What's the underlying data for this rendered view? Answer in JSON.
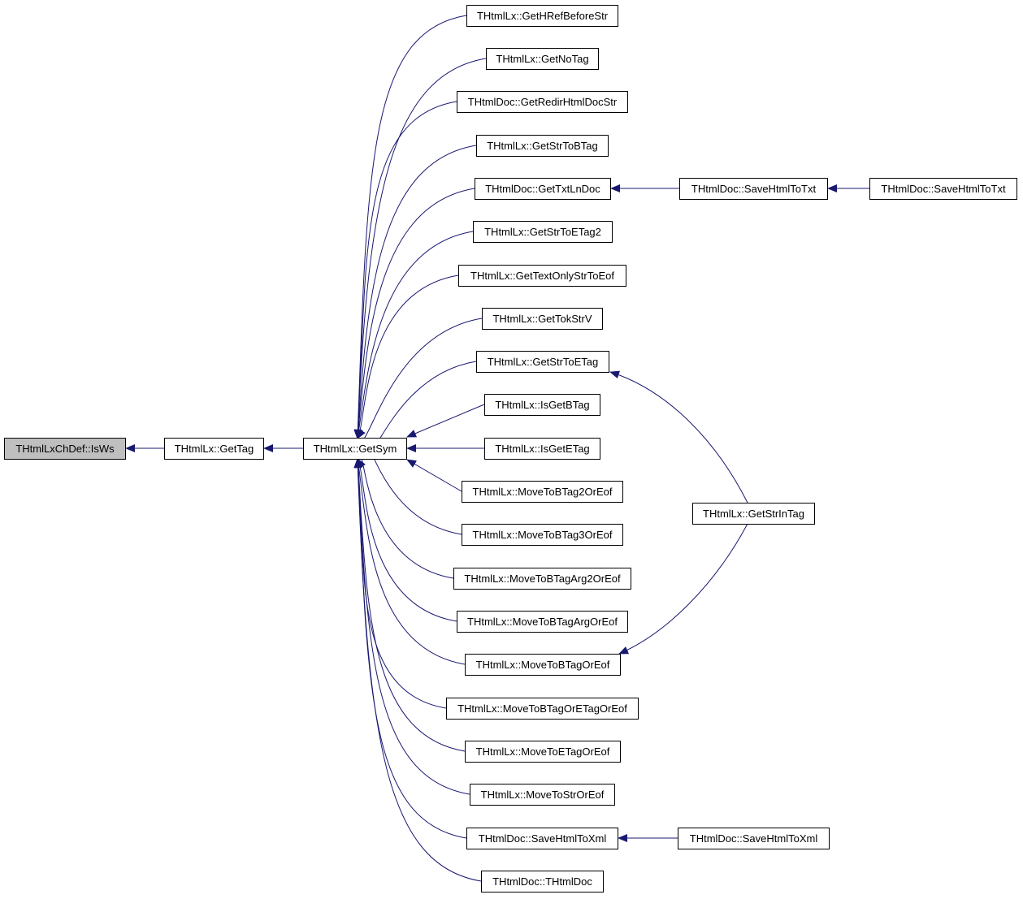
{
  "graph": {
    "edge_color": "#191970",
    "root_fill": "#bfbfbf",
    "nodes": [
      {
        "id": "isws",
        "label": "THtmlLxChDef::IsWs",
        "root": true
      },
      {
        "id": "gettag",
        "label": "THtmlLx::GetTag"
      },
      {
        "id": "getsym",
        "label": "THtmlLx::GetSym"
      },
      {
        "id": "c0",
        "label": "THtmlLx::GetHRefBeforeStr"
      },
      {
        "id": "c1",
        "label": "THtmlLx::GetNoTag"
      },
      {
        "id": "c2",
        "label": "THtmlDoc::GetRedirHtmlDocStr"
      },
      {
        "id": "c3",
        "label": "THtmlLx::GetStrToBTag"
      },
      {
        "id": "c4",
        "label": "THtmlDoc::GetTxtLnDoc"
      },
      {
        "id": "c5",
        "label": "THtmlLx::GetStrToETag2"
      },
      {
        "id": "c6",
        "label": "THtmlLx::GetTextOnlyStrToEof"
      },
      {
        "id": "c7",
        "label": "THtmlLx::GetTokStrV"
      },
      {
        "id": "c8",
        "label": "THtmlLx::GetStrToETag"
      },
      {
        "id": "c9",
        "label": "THtmlLx::IsGetBTag"
      },
      {
        "id": "c10",
        "label": "THtmlLx::IsGetETag"
      },
      {
        "id": "c11",
        "label": "THtmlLx::MoveToBTag2OrEof"
      },
      {
        "id": "c12",
        "label": "THtmlLx::MoveToBTag3OrEof"
      },
      {
        "id": "c13",
        "label": "THtmlLx::MoveToBTagArg2OrEof"
      },
      {
        "id": "c14",
        "label": "THtmlLx::MoveToBTagArgOrEof"
      },
      {
        "id": "c15",
        "label": "THtmlLx::MoveToBTagOrEof"
      },
      {
        "id": "c16",
        "label": "THtmlLx::MoveToBTagOrETagOrEof"
      },
      {
        "id": "c17",
        "label": "THtmlLx::MoveToETagOrEof"
      },
      {
        "id": "c18",
        "label": "THtmlLx::MoveToStrOrEof"
      },
      {
        "id": "c19",
        "label": "THtmlDoc::SaveHtmlToXml"
      },
      {
        "id": "c20",
        "label": "THtmlDoc::THtmlDoc"
      },
      {
        "id": "txt1",
        "label": "THtmlDoc::SaveHtmlToTxt"
      },
      {
        "id": "txt2",
        "label": "THtmlDoc::SaveHtmlToTxt"
      },
      {
        "id": "strintag",
        "label": "THtmlLx::GetStrInTag"
      },
      {
        "id": "xml2",
        "label": "THtmlDoc::SaveHtmlToXml"
      }
    ],
    "edges": [
      [
        "gettag",
        "isws"
      ],
      [
        "getsym",
        "gettag"
      ],
      [
        "c0",
        "getsym"
      ],
      [
        "c1",
        "getsym"
      ],
      [
        "c2",
        "getsym"
      ],
      [
        "c3",
        "getsym"
      ],
      [
        "c4",
        "getsym"
      ],
      [
        "c5",
        "getsym"
      ],
      [
        "c6",
        "getsym"
      ],
      [
        "c7",
        "getsym"
      ],
      [
        "c8",
        "getsym"
      ],
      [
        "c9",
        "getsym"
      ],
      [
        "c10",
        "getsym"
      ],
      [
        "c11",
        "getsym"
      ],
      [
        "c12",
        "getsym"
      ],
      [
        "c13",
        "getsym"
      ],
      [
        "c14",
        "getsym"
      ],
      [
        "c15",
        "getsym"
      ],
      [
        "c16",
        "getsym"
      ],
      [
        "c17",
        "getsym"
      ],
      [
        "c18",
        "getsym"
      ],
      [
        "c19",
        "getsym"
      ],
      [
        "c20",
        "getsym"
      ],
      [
        "txt1",
        "c4"
      ],
      [
        "txt2",
        "txt1"
      ],
      [
        "strintag",
        "c8"
      ],
      [
        "strintag",
        "c15"
      ],
      [
        "xml2",
        "c19"
      ]
    ]
  }
}
